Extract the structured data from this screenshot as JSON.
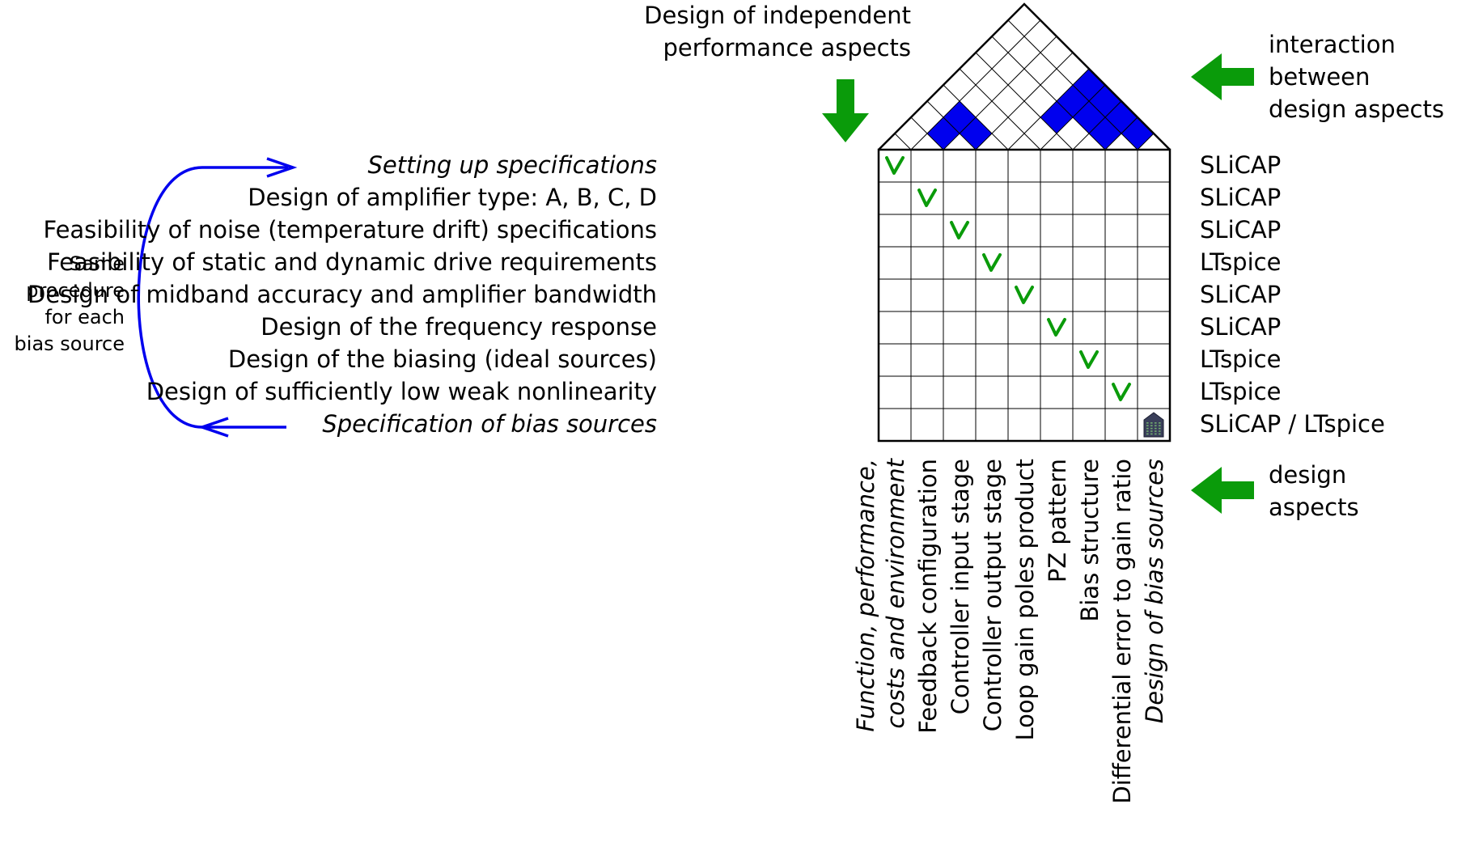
{
  "top_note": [
    "Design of independent",
    "performance aspects"
  ],
  "right_notes": {
    "interaction": [
      "interaction",
      "between",
      "design aspects"
    ],
    "aspects": [
      "design",
      "aspects"
    ]
  },
  "side_note": [
    "Same",
    "procedure",
    "for each",
    "bias source"
  ],
  "rows": [
    {
      "label": "Setting up specifications",
      "italic": true,
      "tool": "SLiCAP"
    },
    {
      "label": "Design of amplifier type: A, B, C, D",
      "italic": false,
      "tool": "SLiCAP"
    },
    {
      "label": "Feasibility of noise (temperature drift) specifications",
      "italic": false,
      "tool": "SLiCAP"
    },
    {
      "label": "Feasibility of static and dynamic drive requirements",
      "italic": false,
      "tool": "LTspice"
    },
    {
      "label": "Design of midband accuracy and amplifier bandwidth",
      "italic": false,
      "tool": "SLiCAP"
    },
    {
      "label": "Design of the frequency response",
      "italic": false,
      "tool": "SLiCAP"
    },
    {
      "label": "Design of the biasing (ideal sources)",
      "italic": false,
      "tool": "LTspice"
    },
    {
      "label": "Design of sufficiently low weak nonlinearity",
      "italic": false,
      "tool": "LTspice"
    },
    {
      "label": "Specification of bias sources",
      "italic": true,
      "tool": "SLiCAP / LTspice"
    }
  ],
  "columns": [
    {
      "lines": [
        "Function, performance,",
        "costs and environment"
      ],
      "italic": true
    },
    {
      "lines": [
        "Feedback configuration"
      ],
      "italic": false
    },
    {
      "lines": [
        "Controller input stage"
      ],
      "italic": false
    },
    {
      "lines": [
        "Controller output stage"
      ],
      "italic": false
    },
    {
      "lines": [
        "Loop gain poles product"
      ],
      "italic": false
    },
    {
      "lines": [
        "PZ pattern"
      ],
      "italic": false
    },
    {
      "lines": [
        "Bias structure"
      ],
      "italic": false
    },
    {
      "lines": [
        "Differential error to gain ratio"
      ],
      "italic": false
    },
    {
      "lines": [
        "Design of bias sources"
      ],
      "italic": true
    }
  ],
  "interactions": [
    [
      1,
      2
    ],
    [
      1,
      3
    ],
    [
      2,
      3
    ],
    [
      4,
      6
    ],
    [
      4,
      7
    ],
    [
      4,
      8
    ],
    [
      5,
      7
    ],
    [
      5,
      8
    ],
    [
      6,
      7
    ],
    [
      6,
      8
    ],
    [
      7,
      8
    ]
  ],
  "icons": {
    "check": "check-mark-icon",
    "house": "house-icon"
  },
  "colors": {
    "green": "#0a9b0a",
    "blue": "#0000ee",
    "grid": "#000000"
  }
}
